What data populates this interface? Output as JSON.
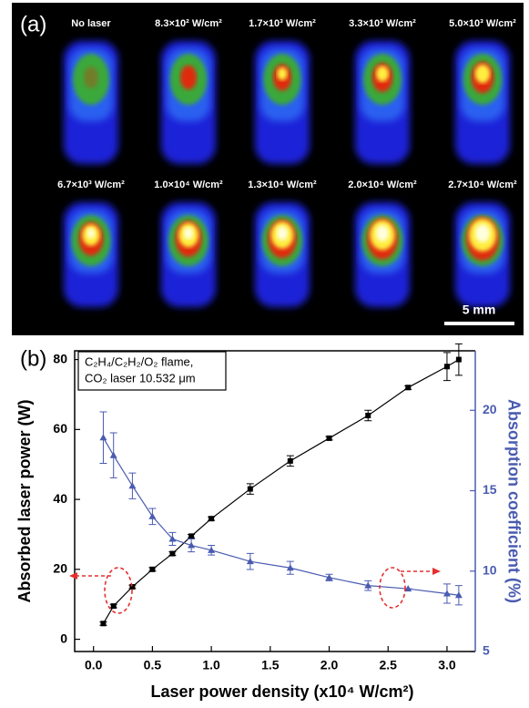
{
  "panel_a": {
    "label": "(a)",
    "images": [
      "No laser",
      "8.3×10² W/cm²",
      "1.7×10³ W/cm²",
      "3.3×10³ W/cm²",
      "5.0×10³ W/cm²",
      "6.7×10³ W/cm²",
      "1.0×10⁴ W/cm²",
      "1.3×10⁴ W/cm²",
      "2.0×10⁴ W/cm²",
      "2.7×10⁴ W/cm²"
    ],
    "scale_bar": "5 mm"
  },
  "chart_data": {
    "type": "line",
    "panel_label": "(b)",
    "annotation": [
      "C₂H₄/C₂H₂/O₂ flame,",
      "CO₂ laser 10.532 μm"
    ],
    "x_label": "Laser power density (x10⁴ W/cm²)",
    "y_label": "Absorbed laser power (W)",
    "y2_label": "Absorption coefficient (%)",
    "x": [
      0.083,
      0.17,
      0.33,
      0.5,
      0.67,
      0.83,
      1.0,
      1.33,
      1.67,
      2.0,
      2.33,
      2.67,
      3.0,
      3.1
    ],
    "xlim": [
      -0.16,
      3.24
    ],
    "xticks": [
      {
        "value": 0,
        "label": "0.0"
      },
      {
        "value": 0.5,
        "label": "0.5"
      },
      {
        "value": 1,
        "label": "1.0"
      },
      {
        "value": 1.5,
        "label": "1.5"
      },
      {
        "value": 2,
        "label": "2.0"
      },
      {
        "value": 2.5,
        "label": "2.5"
      },
      {
        "value": 3,
        "label": "3.0"
      }
    ],
    "ylim": [
      -3.5,
      82.5
    ],
    "yticks": [
      0,
      20,
      40,
      60,
      80
    ],
    "y2lim": [
      5,
      23.7
    ],
    "y2ticks": [
      5,
      10,
      15,
      20
    ],
    "series": [
      {
        "color": "#000000",
        "marker": "square",
        "axis": "y",
        "values": [
          4.5,
          9.5,
          15,
          20,
          24.5,
          29.5,
          34.5,
          43,
          51,
          57.5,
          64,
          72,
          78,
          80
        ],
        "errors": [
          0.5,
          0.5,
          0.5,
          0.5,
          0.5,
          0.5,
          0.5,
          1.5,
          1.5,
          0.5,
          1.5,
          0.5,
          4,
          4.5
        ]
      },
      {
        "color": "#4a5bb0",
        "marker": "triangle",
        "axis": "y2",
        "values": [
          18.3,
          17.2,
          15.3,
          13.4,
          12.0,
          11.6,
          11.3,
          10.6,
          10.2,
          9.6,
          9.1,
          8.9,
          8.6,
          8.5
        ],
        "errors": [
          1.6,
          1.4,
          0.8,
          0.5,
          0.4,
          0.4,
          0.3,
          0.5,
          0.4,
          0.2,
          0.3,
          0,
          0.6,
          0.6
        ]
      }
    ]
  }
}
